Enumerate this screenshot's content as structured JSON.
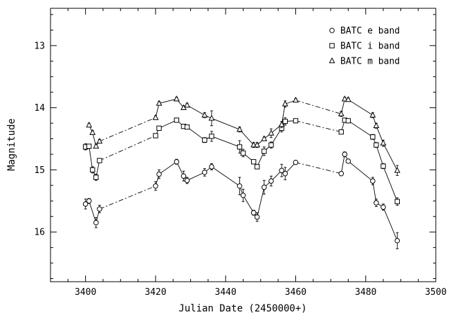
{
  "chart_data": {
    "type": "scatter",
    "title": "",
    "xlabel": "Julian Date (2450000+)",
    "ylabel": "Magnitude",
    "xlim": [
      3390,
      3500
    ],
    "ylim": [
      16.8,
      12.4
    ],
    "y_inverted": true,
    "x_ticks": [
      3400,
      3420,
      3440,
      3460,
      3480,
      3500
    ],
    "y_ticks": [
      13,
      14,
      15,
      16
    ],
    "legend_position": "top-right",
    "dashed_segments": [
      [
        3404,
        3420
      ],
      [
        3460,
        3473
      ]
    ],
    "series": [
      {
        "name": "BATC e band",
        "marker": "circle",
        "x": [
          3400,
          3401,
          3403,
          3404,
          3420,
          3421,
          3426,
          3428,
          3429,
          3434,
          3436,
          3444,
          3445,
          3448,
          3449,
          3451,
          3453,
          3456,
          3457,
          3460,
          3473,
          3474,
          3475,
          3482,
          3483,
          3485,
          3489
        ],
        "y": [
          15.55,
          15.5,
          15.85,
          15.63,
          15.26,
          15.07,
          14.87,
          15.1,
          15.17,
          15.04,
          14.95,
          15.26,
          15.41,
          15.69,
          15.76,
          15.28,
          15.18,
          15.01,
          15.06,
          14.88,
          15.06,
          14.75,
          14.86,
          15.18,
          15.53,
          15.6,
          16.14
        ],
        "err": [
          0.08,
          0.04,
          0.08,
          0.06,
          0.07,
          0.07,
          0.04,
          0.08,
          0.05,
          0.06,
          0.05,
          0.14,
          0.1,
          0.04,
          0.07,
          0.11,
          0.08,
          0.1,
          0.1,
          0.03,
          0.03,
          0.04,
          0.03,
          0.06,
          0.06,
          0.05,
          0.13
        ]
      },
      {
        "name": "BATC i band",
        "marker": "square",
        "x": [
          3400,
          3401,
          3402,
          3403,
          3404,
          3420,
          3421,
          3426,
          3428,
          3429,
          3434,
          3436,
          3444,
          3445,
          3448,
          3449,
          3451,
          3453,
          3456,
          3457,
          3460,
          3473,
          3474,
          3475,
          3482,
          3483,
          3485,
          3489
        ],
        "y": [
          14.63,
          14.62,
          15.0,
          15.12,
          14.85,
          14.45,
          14.33,
          14.2,
          14.3,
          14.31,
          14.52,
          14.46,
          14.63,
          14.73,
          14.87,
          14.95,
          14.7,
          14.6,
          14.33,
          14.22,
          14.21,
          14.39,
          14.2,
          14.21,
          14.47,
          14.6,
          14.94,
          15.51
        ],
        "err": [
          0.05,
          0.03,
          0.05,
          0.05,
          0.03,
          0.03,
          0.03,
          0.03,
          0.03,
          0.03,
          0.04,
          0.08,
          0.1,
          0.06,
          0.03,
          0.03,
          0.07,
          0.05,
          0.06,
          0.06,
          0.02,
          0.03,
          0.03,
          0.03,
          0.04,
          0.04,
          0.04,
          0.06
        ]
      },
      {
        "name": "BATC m band",
        "marker": "triangle",
        "x": [
          3401,
          3402,
          3403,
          3404,
          3420,
          3421,
          3426,
          3428,
          3429,
          3434,
          3436,
          3444,
          3448,
          3449,
          3451,
          3453,
          3456,
          3457,
          3460,
          3473,
          3474,
          3475,
          3482,
          3483,
          3485,
          3489
        ],
        "y": [
          14.28,
          14.4,
          14.62,
          14.54,
          14.16,
          13.93,
          13.86,
          14.0,
          13.96,
          14.12,
          14.17,
          14.35,
          14.6,
          14.6,
          14.5,
          14.41,
          14.27,
          13.94,
          13.88,
          14.1,
          13.86,
          13.87,
          14.12,
          14.29,
          14.57,
          15.01
        ],
        "err": [
          0.03,
          0.03,
          0.03,
          0.03,
          0.03,
          0.03,
          0.03,
          0.03,
          0.03,
          0.04,
          0.12,
          0.04,
          0.04,
          0.04,
          0.03,
          0.07,
          0.05,
          0.05,
          0.03,
          0.04,
          0.03,
          0.03,
          0.04,
          0.04,
          0.05,
          0.08
        ]
      }
    ]
  }
}
